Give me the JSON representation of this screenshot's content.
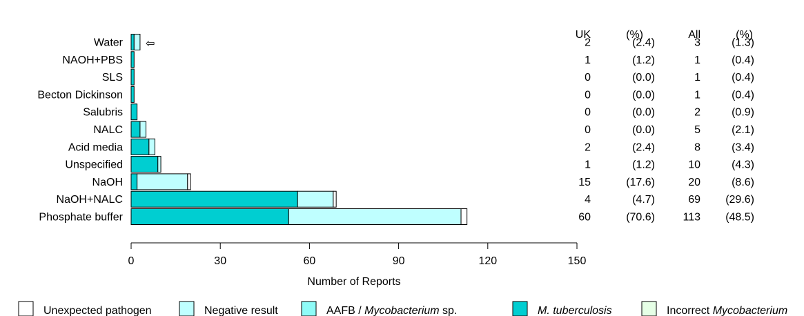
{
  "chart_data": {
    "type": "bar",
    "orientation": "horizontal",
    "stacked": true,
    "categories": [
      "Water",
      "NAOH+PBS",
      "SLS",
      "Becton Dickinson",
      "Salubris",
      "NALC",
      "Acid media",
      "Unspecified",
      "NaOH",
      "NaOH+NALC",
      "Phosphate buffer"
    ],
    "series": [
      {
        "name": "M. tuberculosis",
        "color": "#00CED1",
        "values": [
          1,
          1,
          1,
          1,
          2,
          3,
          6,
          9,
          2,
          56,
          53
        ]
      },
      {
        "name": "AAFB / Mycobacterium sp.",
        "color": "#8EFBF7",
        "values": [
          0,
          0,
          0,
          0,
          0,
          0,
          0,
          0,
          0,
          0,
          0
        ]
      },
      {
        "name": "Negative result",
        "color": "#BFFFFF",
        "values": [
          2,
          0,
          0,
          0,
          0,
          2,
          2,
          1,
          17,
          12,
          58
        ]
      },
      {
        "name": "Incorrect Mycobacterium",
        "color": "#E6FFE6",
        "values": [
          0,
          0,
          0,
          0,
          0,
          0,
          0,
          0,
          0,
          0,
          0
        ]
      },
      {
        "name": "Unexpected pathogen",
        "color": "#FFFFFF",
        "values": [
          0,
          0,
          0,
          0,
          0,
          0,
          0,
          0,
          1,
          1,
          2
        ]
      }
    ],
    "totals": [
      3,
      1,
      1,
      1,
      2,
      5,
      8,
      10,
      20,
      69,
      113
    ],
    "xlabel": "Number of Reports",
    "xlim": [
      0,
      150
    ],
    "xticks": [
      "0",
      "30",
      "60",
      "90",
      "120",
      "150"
    ],
    "grid": false,
    "legend_position": "bottom",
    "annotation": {
      "category": "Water",
      "symbol": "⇦"
    },
    "table": {
      "headers": [
        "UK",
        "(%)",
        "All",
        "(%)"
      ],
      "rows": [
        [
          "2",
          "(2.4)",
          "3",
          "(1.3)"
        ],
        [
          "1",
          "(1.2)",
          "1",
          "(0.4)"
        ],
        [
          "0",
          "(0.0)",
          "1",
          "(0.4)"
        ],
        [
          "0",
          "(0.0)",
          "1",
          "(0.4)"
        ],
        [
          "0",
          "(0.0)",
          "2",
          "(0.9)"
        ],
        [
          "0",
          "(0.0)",
          "5",
          "(2.1)"
        ],
        [
          "2",
          "(2.4)",
          "8",
          "(3.4)"
        ],
        [
          "1",
          "(1.2)",
          "10",
          "(4.3)"
        ],
        [
          "15",
          "(17.6)",
          "20",
          "(8.6)"
        ],
        [
          "4",
          "(4.7)",
          "69",
          "(29.6)"
        ],
        [
          "60",
          "(70.6)",
          "113",
          "(48.5)"
        ]
      ]
    },
    "legend": [
      {
        "color": "#FFFFFF",
        "parts": [
          {
            "text": "Unexpected pathogen",
            "italic": false
          }
        ]
      },
      {
        "color": "#BFFFFF",
        "parts": [
          {
            "text": "Negative result",
            "italic": false
          }
        ]
      },
      {
        "color": "#8EFBF7",
        "parts": [
          {
            "text": "AAFB / ",
            "italic": false
          },
          {
            "text": "Mycobacterium",
            "italic": true
          },
          {
            "text": " sp.",
            "italic": false
          }
        ]
      },
      {
        "color": "#00CED1",
        "parts": [
          {
            "text": "M. tuberculosis",
            "italic": true
          }
        ]
      },
      {
        "color": "#E6FFE6",
        "parts": [
          {
            "text": "Incorrect ",
            "italic": false
          },
          {
            "text": "Mycobacterium",
            "italic": true
          }
        ]
      }
    ]
  }
}
